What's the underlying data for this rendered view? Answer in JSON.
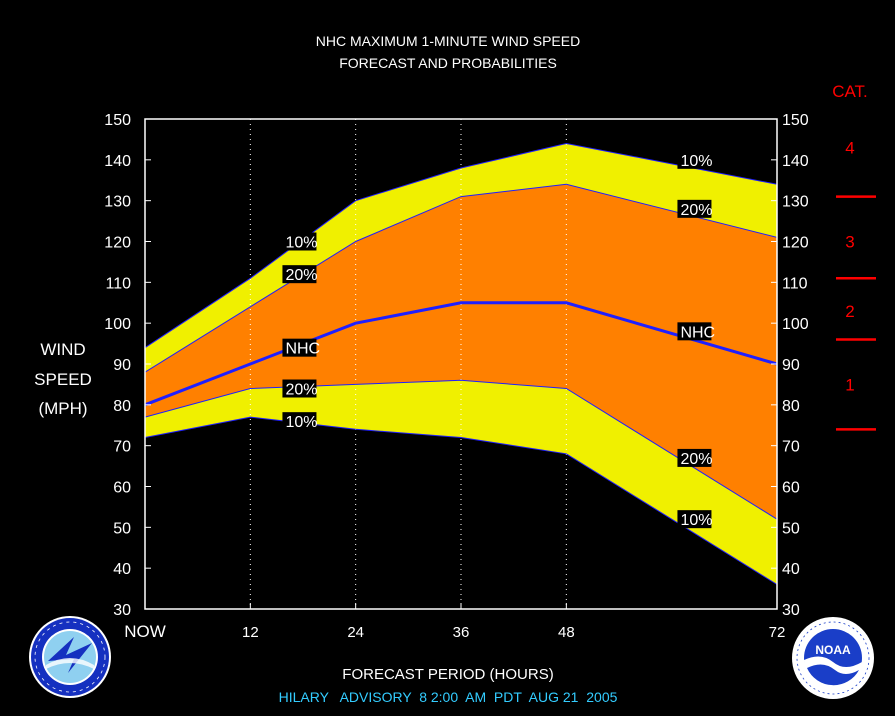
{
  "chart_data": {
    "type": "area",
    "title": "NHC MAXIMUM 1-MINUTE WIND SPEED",
    "subtitle": "FORECAST AND PROBABILITIES",
    "xlabel": "FORECAST PERIOD (HOURS)",
    "ylabel_lines": [
      "WIND",
      "SPEED",
      "(MPH)"
    ],
    "x": [
      0,
      12,
      24,
      36,
      48,
      72
    ],
    "x_tick_labels": [
      "NOW",
      "12",
      "24",
      "36",
      "48",
      "72"
    ],
    "ylim": [
      30,
      150
    ],
    "y_ticks": [
      30,
      40,
      50,
      60,
      70,
      80,
      90,
      100,
      110,
      120,
      130,
      140,
      150
    ],
    "grid": "vertical dotted",
    "colors": {
      "outer_band": "#f0f000",
      "inner_band": "#ff8000",
      "nhc_line": "#1f1fff",
      "category": "#ff0000",
      "footer": "#33ccff",
      "background": "#000000"
    },
    "series": [
      {
        "name": "10%",
        "role": "upper",
        "values": [
          94,
          111,
          130,
          138,
          144,
          134
        ]
      },
      {
        "name": "20%",
        "role": "upper",
        "values": [
          88,
          104,
          120,
          131,
          134,
          121
        ]
      },
      {
        "name": "NHC",
        "role": "forecast",
        "values": [
          80,
          90,
          100,
          105,
          105,
          90
        ]
      },
      {
        "name": "20%",
        "role": "lower",
        "values": [
          77,
          84,
          85,
          86,
          84,
          52
        ]
      },
      {
        "name": "10%",
        "role": "lower",
        "values": [
          72,
          77,
          74,
          72,
          68,
          36
        ]
      }
    ],
    "annotations": [
      {
        "text": "10%",
        "x": 16,
        "y": 120
      },
      {
        "text": "20%",
        "x": 16,
        "y": 112
      },
      {
        "text": "NHC",
        "x": 16,
        "y": 94
      },
      {
        "text": "20%",
        "x": 16,
        "y": 84
      },
      {
        "text": "10%",
        "x": 16,
        "y": 76
      },
      {
        "text": "10%",
        "x": 61,
        "y": 140
      },
      {
        "text": "20%",
        "x": 61,
        "y": 128
      },
      {
        "text": "NHC",
        "x": 61,
        "y": 98
      },
      {
        "text": "20%",
        "x": 61,
        "y": 67
      },
      {
        "text": "10%",
        "x": 61,
        "y": 52
      }
    ],
    "categories_scale": {
      "title": "CAT.",
      "labels": [
        {
          "text": "4",
          "y": 143
        },
        {
          "text": "3",
          "y": 120
        },
        {
          "text": "2",
          "y": 103
        },
        {
          "text": "1",
          "y": 85
        }
      ],
      "boundaries": [
        131,
        111,
        96,
        74
      ]
    }
  },
  "footer": "HILARY   ADVISORY  8 2:00  AM  PDT  AUG 21  2005",
  "logos": {
    "nws": {
      "name": "nws-logo",
      "lettering": "NATIONAL WEATHER SERVICE"
    },
    "noaa": {
      "name": "noaa-logo",
      "lettering": "NOAA"
    }
  }
}
